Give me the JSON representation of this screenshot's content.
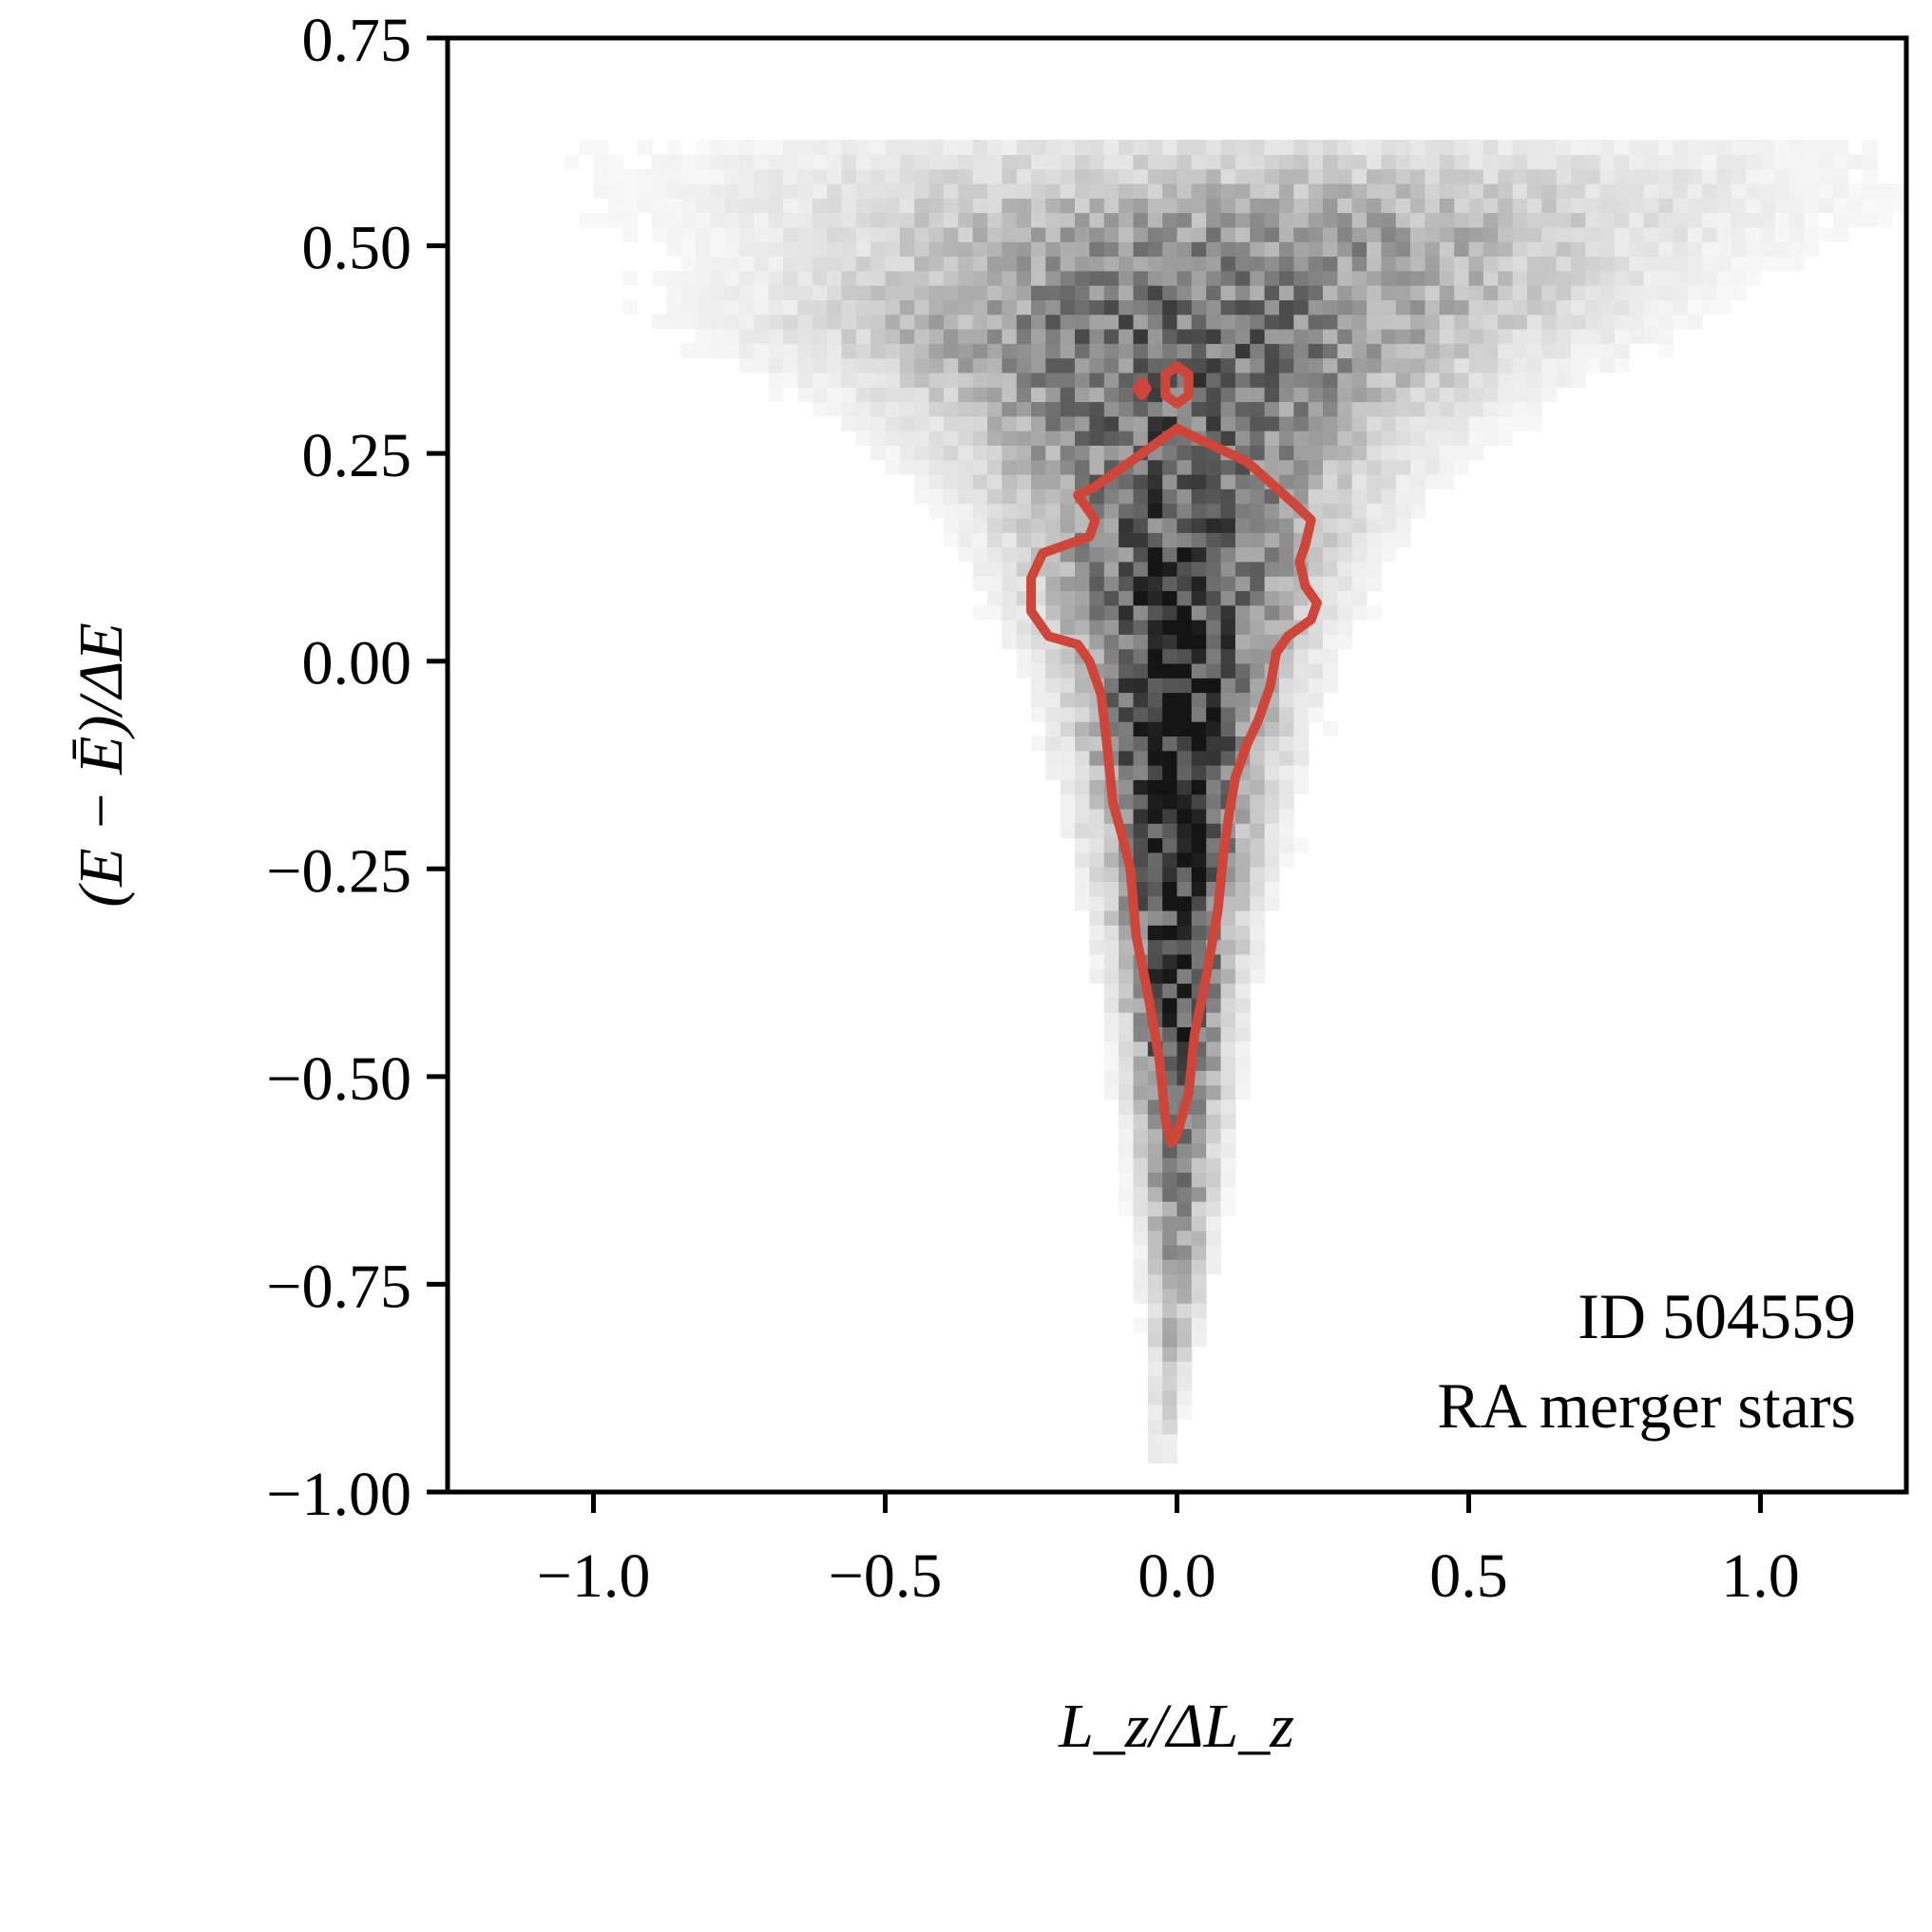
{
  "chart_data": {
    "type": "heatmap",
    "title": "",
    "xlabel": "L_z/ΔL_z",
    "ylabel": "(E − Ē)/ΔE",
    "xlim": [
      -1.25,
      1.25
    ],
    "ylim": [
      -1.0,
      0.75
    ],
    "x_ticks": [
      -1.0,
      -0.5,
      0.0,
      0.5,
      1.0
    ],
    "x_tick_labels": [
      "−1.0",
      "−0.5",
      "0.0",
      "0.5",
      "1.0"
    ],
    "y_ticks": [
      0.75,
      0.5,
      0.25,
      0.0,
      -0.25,
      -0.5,
      -0.75,
      -1.0
    ],
    "y_tick_labels": [
      "0.75",
      "0.50",
      "0.25",
      "0.00",
      "−0.25",
      "−0.50",
      "−0.75",
      "−1.00"
    ],
    "annotations": [
      "ID 504559",
      "RA merger stars"
    ],
    "colormap": "greys",
    "contour_color": "#d0453a",
    "density_profile": [
      {
        "y": 0.62,
        "x_center": 0.15,
        "half_width": 1.1,
        "intensity": 0.12
      },
      {
        "y": 0.5,
        "x_center": 0.1,
        "half_width": 0.75,
        "intensity": 0.45
      },
      {
        "y": 0.4,
        "x_center": 0.0,
        "half_width": 0.65,
        "intensity": 0.6
      },
      {
        "y": 0.3,
        "x_center": 0.0,
        "half_width": 0.45,
        "intensity": 0.6
      },
      {
        "y": 0.2,
        "x_center": 0.0,
        "half_width": 0.32,
        "intensity": 0.65
      },
      {
        "y": 0.1,
        "x_center": 0.0,
        "half_width": 0.26,
        "intensity": 0.72
      },
      {
        "y": 0.0,
        "x_center": 0.0,
        "half_width": 0.2,
        "intensity": 0.85
      },
      {
        "y": -0.1,
        "x_center": 0.0,
        "half_width": 0.17,
        "intensity": 0.9
      },
      {
        "y": -0.25,
        "x_center": 0.0,
        "half_width": 0.13,
        "intensity": 0.85
      },
      {
        "y": -0.4,
        "x_center": 0.0,
        "half_width": 0.1,
        "intensity": 0.78
      },
      {
        "y": -0.55,
        "x_center": 0.0,
        "half_width": 0.08,
        "intensity": 0.62
      },
      {
        "y": -0.7,
        "x_center": 0.0,
        "half_width": 0.06,
        "intensity": 0.42
      },
      {
        "y": -0.85,
        "x_center": -0.01,
        "half_width": 0.04,
        "intensity": 0.22
      },
      {
        "y": -0.97,
        "x_center": -0.03,
        "half_width": 0.02,
        "intensity": 0.1
      }
    ],
    "contour_main": [
      [
        0.0,
        0.28
      ],
      [
        0.06,
        0.26
      ],
      [
        0.12,
        0.24
      ],
      [
        0.2,
        0.19
      ],
      [
        0.23,
        0.17
      ],
      [
        0.22,
        0.14
      ],
      [
        0.21,
        0.12
      ],
      [
        0.22,
        0.09
      ],
      [
        0.24,
        0.07
      ],
      [
        0.23,
        0.05
      ],
      [
        0.19,
        0.03
      ],
      [
        0.17,
        0.01
      ],
      [
        0.16,
        -0.03
      ],
      [
        0.14,
        -0.07
      ],
      [
        0.12,
        -0.1
      ],
      [
        0.1,
        -0.14
      ],
      [
        0.09,
        -0.18
      ],
      [
        0.08,
        -0.23
      ],
      [
        0.07,
        -0.3
      ],
      [
        0.05,
        -0.38
      ],
      [
        0.03,
        -0.45
      ],
      [
        0.02,
        -0.52
      ],
      [
        0.0,
        -0.57
      ],
      [
        -0.01,
        -0.58
      ],
      [
        -0.02,
        -0.55
      ],
      [
        -0.03,
        -0.48
      ],
      [
        -0.05,
        -0.4
      ],
      [
        -0.07,
        -0.33
      ],
      [
        -0.08,
        -0.25
      ],
      [
        -0.09,
        -0.22
      ],
      [
        -0.11,
        -0.17
      ],
      [
        -0.12,
        -0.1
      ],
      [
        -0.13,
        -0.04
      ],
      [
        -0.15,
        0.0
      ],
      [
        -0.17,
        0.02
      ],
      [
        -0.22,
        0.03
      ],
      [
        -0.25,
        0.06
      ],
      [
        -0.25,
        0.1
      ],
      [
        -0.23,
        0.13
      ],
      [
        -0.19,
        0.14
      ],
      [
        -0.15,
        0.15
      ],
      [
        -0.14,
        0.17
      ],
      [
        -0.17,
        0.2
      ],
      [
        -0.14,
        0.21
      ],
      [
        -0.08,
        0.24
      ],
      [
        0.0,
        0.28
      ]
    ],
    "contour_islands": [
      [
        [
          0.0,
          0.355
        ],
        [
          0.02,
          0.345
        ],
        [
          0.02,
          0.32
        ],
        [
          0.0,
          0.31
        ],
        [
          -0.02,
          0.32
        ],
        [
          -0.02,
          0.345
        ],
        [
          0.0,
          0.355
        ]
      ],
      [
        [
          -0.06,
          0.336
        ],
        [
          -0.052,
          0.328
        ],
        [
          -0.06,
          0.32
        ],
        [
          -0.068,
          0.328
        ],
        [
          -0.06,
          0.336
        ]
      ]
    ]
  }
}
